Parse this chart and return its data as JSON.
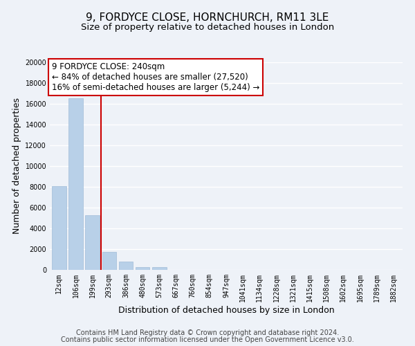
{
  "title": "9, FORDYCE CLOSE, HORNCHURCH, RM11 3LE",
  "subtitle": "Size of property relative to detached houses in London",
  "xlabel": "Distribution of detached houses by size in London",
  "ylabel": "Number of detached properties",
  "bar_labels": [
    "12sqm",
    "106sqm",
    "199sqm",
    "293sqm",
    "386sqm",
    "480sqm",
    "573sqm",
    "667sqm",
    "760sqm",
    "854sqm",
    "947sqm",
    "1041sqm",
    "1134sqm",
    "1228sqm",
    "1321sqm",
    "1415sqm",
    "1508sqm",
    "1602sqm",
    "1695sqm",
    "1789sqm",
    "1882sqm"
  ],
  "bar_values": [
    8100,
    16500,
    5300,
    1750,
    800,
    280,
    280,
    0,
    0,
    0,
    0,
    0,
    0,
    0,
    0,
    0,
    0,
    0,
    0,
    0,
    0
  ],
  "bar_color": "#b8d0e8",
  "bar_edge_color": "#a0bcd8",
  "marker_line_after_bar": 2,
  "marker_line_color": "#cc0000",
  "ylim": [
    0,
    20000
  ],
  "yticks": [
    0,
    2000,
    4000,
    6000,
    8000,
    10000,
    12000,
    14000,
    16000,
    18000,
    20000
  ],
  "annotation_title": "9 FORDYCE CLOSE: 240sqm",
  "annotation_line1": "← 84% of detached houses are smaller (27,520)",
  "annotation_line2": "16% of semi-detached houses are larger (5,244) →",
  "annotation_box_color": "#ffffff",
  "annotation_box_edge": "#cc0000",
  "footer_line1": "Contains HM Land Registry data © Crown copyright and database right 2024.",
  "footer_line2": "Contains public sector information licensed under the Open Government Licence v3.0.",
  "bg_color": "#eef2f8",
  "plot_bg_color": "#eef2f8",
  "grid_color": "#ffffff",
  "title_fontsize": 11,
  "subtitle_fontsize": 9.5,
  "axis_label_fontsize": 9,
  "tick_fontsize": 7,
  "annotation_fontsize": 8.5,
  "footer_fontsize": 7
}
